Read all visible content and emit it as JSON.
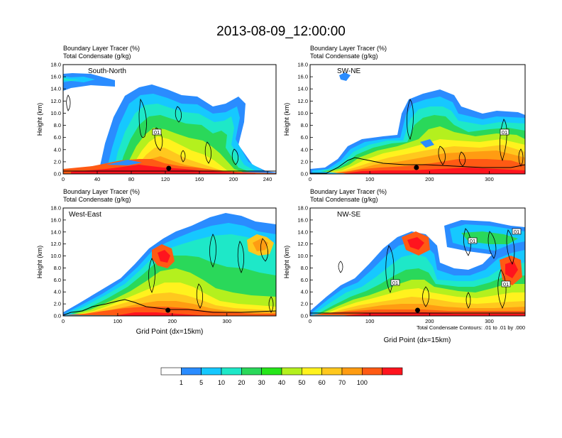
{
  "title": "2013-08-09_12:00:00",
  "colors": [
    "#ffffff",
    "#2a8cff",
    "#16c8ff",
    "#1ee8c8",
    "#2ad85a",
    "#26e61a",
    "#b4f01e",
    "#fff21e",
    "#ffc81e",
    "#ff9c12",
    "#ff5a14",
    "#ff141e"
  ],
  "panels": [
    {
      "key": "sn",
      "label": "South-North",
      "subtitle1": "Boundary Layer Tracer   (%)",
      "subtitle2": "Total Condensate   (g/kg)",
      "ylabel": "Height (km)",
      "xlabel": "",
      "xmax": 250,
      "xticks": [
        "0",
        "40",
        "80",
        "120",
        "160",
        "200",
        "240"
      ],
      "yticks": [
        "0.0",
        "2.0",
        "4.0",
        "6.0",
        "8.0",
        "10.0",
        "12.0",
        "14.0",
        "16.0",
        "18.0"
      ],
      "contour_label": "01",
      "marker_x": 124
    },
    {
      "key": "swne",
      "label": "SW-NE",
      "subtitle1": "Boundary Layer Tracer   (%)",
      "subtitle2": "Total Condensate   (g/kg)",
      "ylabel": "Height (km)",
      "xlabel": "",
      "xmax": 360,
      "xticks": [
        "0",
        "100",
        "200",
        "300"
      ],
      "yticks": [
        "0.0",
        "2.0",
        "4.0",
        "6.0",
        "8.0",
        "10.0",
        "12.0",
        "14.0",
        "16.0",
        "18.0"
      ],
      "contour_label": "01",
      "marker_x": 178
    },
    {
      "key": "we",
      "label": "West-East",
      "subtitle1": "Boundary Layer Tracer   (%)",
      "subtitle2": "Total Condensate   (g/kg)",
      "ylabel": "Height (km)",
      "xlabel": "Grid Point (dx=15km)",
      "xmax": 390,
      "xticks": [
        "0",
        "100",
        "200",
        "300"
      ],
      "yticks": [
        "0.0",
        "2.0",
        "4.0",
        "6.0",
        "8.0",
        "10.0",
        "12.0",
        "14.0",
        "16.0",
        "18.0"
      ],
      "contour_label": "",
      "marker_x": 192
    },
    {
      "key": "nwse",
      "label": "NW-SE",
      "subtitle1": "Boundary Layer Tracer   (%)",
      "subtitle2": "Total Condensate   (g/kg)",
      "ylabel": "Height (km)",
      "xlabel": "Grid Point (dx=15km)",
      "xmax": 360,
      "xticks": [
        "0",
        "100",
        "200",
        "300"
      ],
      "yticks": [
        "0.0",
        "2.0",
        "4.0",
        "6.0",
        "8.0",
        "10.0",
        "12.0",
        "14.0",
        "16.0",
        "18.0"
      ],
      "contour_label": "01",
      "marker_x": 180,
      "note": "Total Condensate Contours: .01 to .01 by .000"
    }
  ],
  "colorbar": {
    "labels": [
      "1",
      "5",
      "10",
      "20",
      "30",
      "40",
      "50",
      "60",
      "70",
      "100"
    ]
  },
  "chart_data": [
    {
      "type": "heatmap",
      "title": "South-North",
      "ylabel": "Height (km)",
      "xlim": [
        0,
        250
      ],
      "ylim": [
        0,
        18
      ],
      "field": "Boundary Layer Tracer (%)",
      "contours": "Total Condensate (g/kg) 0.01",
      "peak_tracer_pct": 100,
      "max_cloud_top_km": 16.5
    },
    {
      "type": "heatmap",
      "title": "SW-NE",
      "ylabel": "Height (km)",
      "xlim": [
        0,
        360
      ],
      "ylim": [
        0,
        18
      ],
      "field": "Boundary Layer Tracer (%)",
      "contours": "Total Condensate (g/kg) 0.01",
      "peak_tracer_pct": 100,
      "max_cloud_top_km": 15.5
    },
    {
      "type": "heatmap",
      "title": "West-East",
      "xlabel": "Grid Point (dx=15km)",
      "ylabel": "Height (km)",
      "xlim": [
        0,
        390
      ],
      "ylim": [
        0,
        18
      ],
      "field": "Boundary Layer Tracer (%)",
      "contours": "Total Condensate (g/kg) 0.01",
      "peak_tracer_pct": 100,
      "max_cloud_top_km": 15.0
    },
    {
      "type": "heatmap",
      "title": "NW-SE",
      "xlabel": "Grid Point (dx=15km)",
      "ylabel": "Height (km)",
      "xlim": [
        0,
        360
      ],
      "ylim": [
        0,
        18
      ],
      "field": "Boundary Layer Tracer (%)",
      "contours": "Total Condensate (g/kg) 0.01",
      "peak_tracer_pct": 100,
      "max_cloud_top_km": 15.5
    }
  ]
}
